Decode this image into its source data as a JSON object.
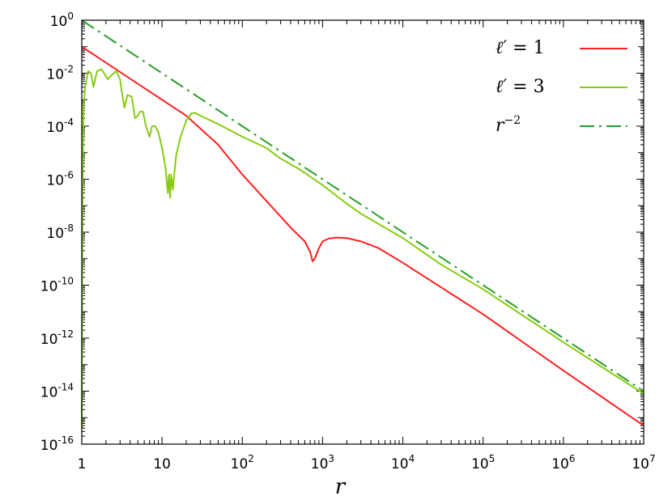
{
  "chart_data": {
    "type": "line",
    "title": "",
    "xlabel": "r",
    "ylabel": "",
    "xscale": "log",
    "yscale": "log",
    "xlim": [
      1,
      10000000
    ],
    "ylim": [
      1e-16,
      1
    ],
    "grid": false,
    "legend_position": "top-right",
    "x_ticks": [
      {
        "base": "1",
        "exp": ""
      },
      {
        "base": "10",
        "exp": ""
      },
      {
        "base": "10",
        "exp": "2"
      },
      {
        "base": "10",
        "exp": "3"
      },
      {
        "base": "10",
        "exp": "4"
      },
      {
        "base": "10",
        "exp": "5"
      },
      {
        "base": "10",
        "exp": "6"
      },
      {
        "base": "10",
        "exp": "7"
      }
    ],
    "y_ticks": [
      {
        "base": "10",
        "exp": "0"
      },
      {
        "base": "10",
        "exp": "-2"
      },
      {
        "base": "10",
        "exp": "-4"
      },
      {
        "base": "10",
        "exp": "-6"
      },
      {
        "base": "10",
        "exp": "-8"
      },
      {
        "base": "10",
        "exp": "-10"
      },
      {
        "base": "10",
        "exp": "-12"
      },
      {
        "base": "10",
        "exp": "-14"
      },
      {
        "base": "10",
        "exp": "-16"
      }
    ],
    "series": [
      {
        "name": "ℓ′ = 1",
        "legend_main": "ℓ′",
        "legend_rest": " = 1",
        "color": "#ff2020",
        "dash": "solid",
        "x": [
          1,
          2,
          5,
          10,
          20,
          50,
          100,
          200,
          400,
          600,
          700,
          750,
          800,
          900,
          1000,
          1200,
          1500,
          2000,
          3000,
          5000,
          10000,
          100000,
          1000000,
          10000000
        ],
        "y": [
          0.1,
          0.025,
          0.004,
          0.001,
          0.00025,
          2e-05,
          1.5e-06,
          1.5e-07,
          1.5e-08,
          4.5e-09,
          1.8e-09,
          8e-10,
          1e-09,
          2.5e-09,
          4.5e-09,
          5.8e-09,
          6.2e-09,
          6e-09,
          4.5e-09,
          2.5e-09,
          7e-10,
          8e-12,
          6e-14,
          5e-16
        ]
      },
      {
        "name": "ℓ′ = 3",
        "legend_main": "ℓ′",
        "legend_rest": " = 3",
        "color": "#88cc11",
        "dash": "solid",
        "x": [
          1,
          1.02,
          1.05,
          1.1,
          1.2,
          1.3,
          1.4,
          1.55,
          1.75,
          1.9,
          2.1,
          2.4,
          2.7,
          3.0,
          3.2,
          3.4,
          3.7,
          4.2,
          4.6,
          5.0,
          5.3,
          5.8,
          6.3,
          7.0,
          7.5,
          8.2,
          9.0,
          10.0,
          11.0,
          11.8,
          12.2,
          12.6,
          13.0,
          13.6,
          15.0,
          17.0,
          20.0,
          23.0,
          26.0,
          30.0,
          50.0,
          100.0,
          200.0,
          300.0,
          500.0,
          1000.0,
          2000.0,
          3000.0,
          10000.0,
          30000.0,
          100000.0,
          1000000.0,
          10000000.0
        ],
        "y": [
          4e-16,
          1e-07,
          0.0005,
          0.003,
          0.012,
          0.01,
          0.003,
          0.012,
          0.014,
          0.01,
          0.006,
          0.009,
          0.012,
          0.006,
          0.0015,
          0.0005,
          0.0015,
          0.0013,
          0.0002,
          0.00025,
          0.00035,
          0.00035,
          0.0001,
          4e-05,
          0.0001,
          0.0001,
          6e-05,
          1.5e-05,
          3e-06,
          3e-07,
          1.5e-06,
          2e-07,
          1.5e-06,
          4e-07,
          8e-06,
          4e-05,
          0.00016,
          0.0003,
          0.00032,
          0.00025,
          0.00012,
          4e-05,
          1.5e-05,
          6e-06,
          2.5e-06,
          6e-07,
          1.2e-07,
          5e-08,
          6e-09,
          6e-10,
          7e-11,
          7e-13,
          8e-15
        ]
      },
      {
        "name": "r⁻²",
        "legend_main": "r",
        "legend_rest": "−2",
        "color": "#2a9d2a",
        "dash": "dashdot",
        "x": [
          1,
          10000000
        ],
        "y": [
          1,
          1e-14
        ]
      }
    ]
  }
}
